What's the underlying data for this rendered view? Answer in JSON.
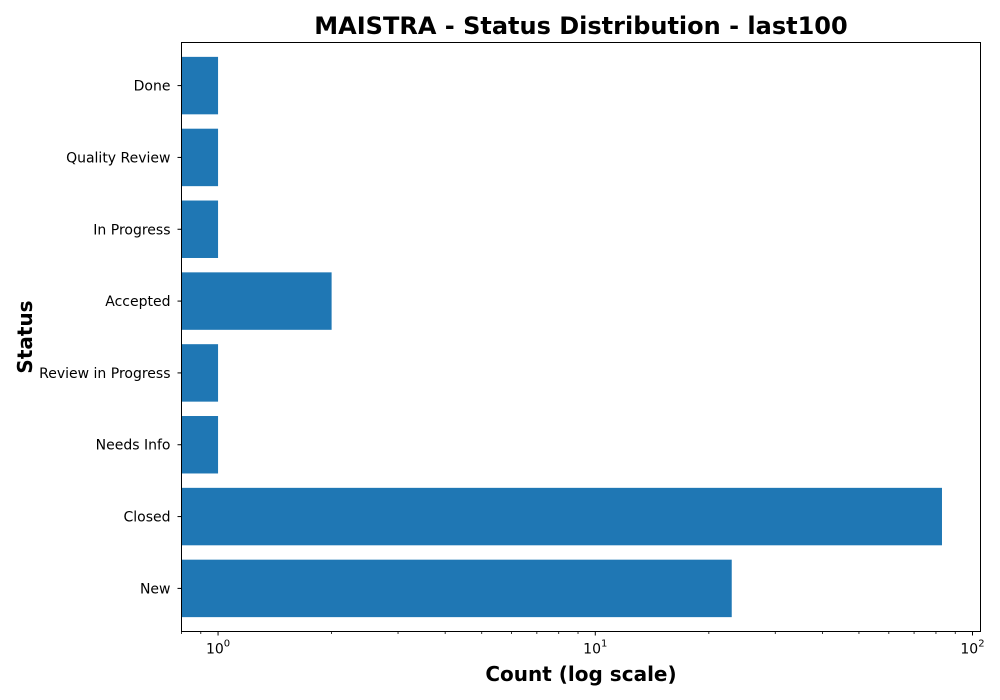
{
  "chart_data": {
    "type": "bar",
    "orientation": "horizontal",
    "title": "MAISTRA - Status Distribution - last100",
    "xlabel": "Count (log scale)",
    "ylabel": "Status",
    "x_scale": "log",
    "xlim": [
      0.8,
      105
    ],
    "x_ticks": [
      {
        "value": 1,
        "base": "10",
        "exp": "0"
      },
      {
        "value": 10,
        "base": "10",
        "exp": "1"
      },
      {
        "value": 100,
        "base": "10",
        "exp": "2"
      }
    ],
    "categories": [
      "New",
      "Closed",
      "Needs Info",
      "Review in Progress",
      "Accepted",
      "In Progress",
      "Quality Review",
      "Done"
    ],
    "values": [
      23,
      83,
      1,
      1,
      2,
      1,
      1,
      1
    ],
    "bar_color": "#1f77b4",
    "grid": false
  }
}
